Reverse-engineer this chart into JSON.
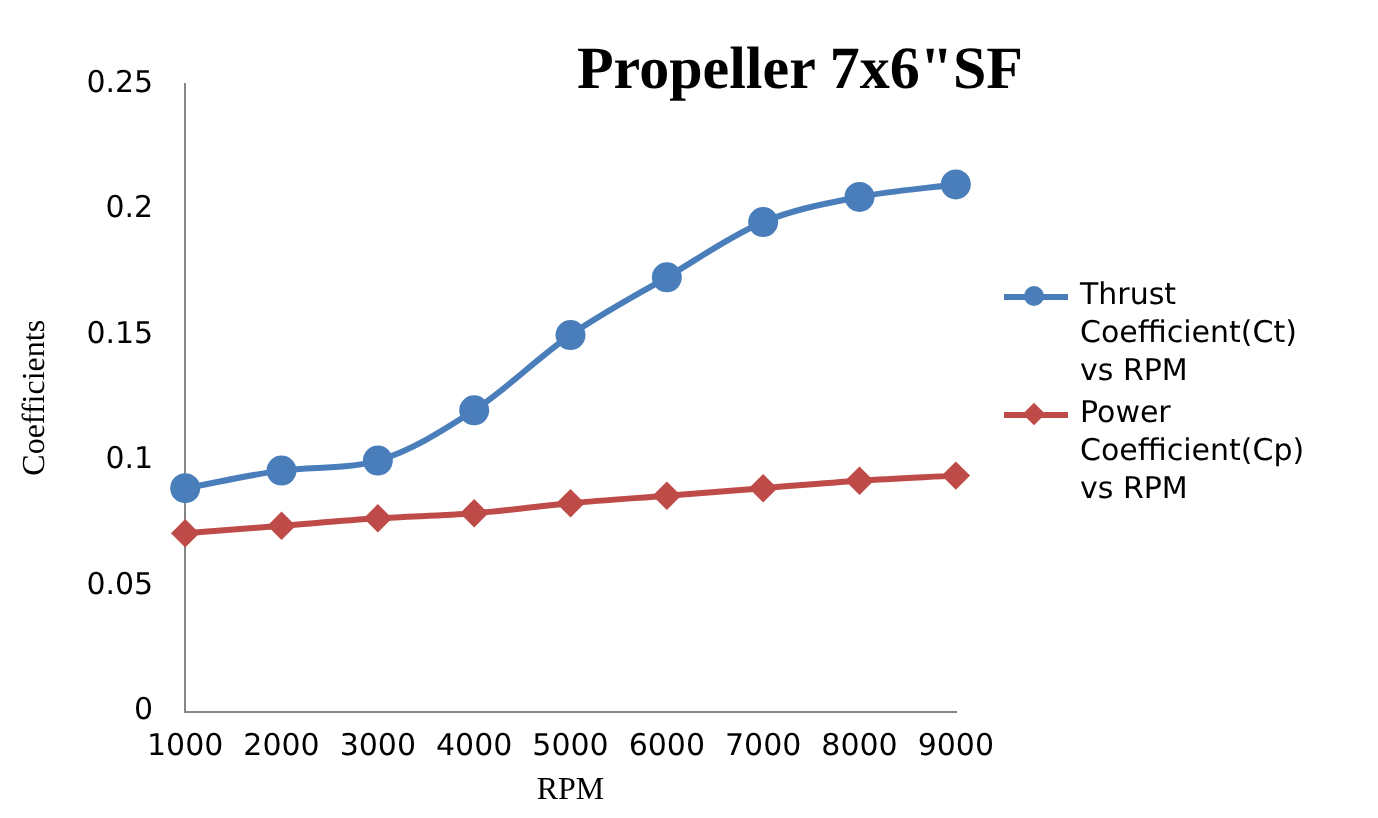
{
  "chart_data": {
    "type": "line",
    "title": "Propeller 7x6\"SF",
    "xlabel": "RPM",
    "ylabel": "Coefficients",
    "categories": [
      "1000",
      "2000",
      "3000",
      "4000",
      "5000",
      "6000",
      "7000",
      "8000",
      "9000"
    ],
    "series": [
      {
        "name": "Thrust Coefficient(Ct) vs RPM",
        "color": "#4a7ebb",
        "marker": "circle",
        "values": [
          0.089,
          0.096,
          0.1,
          0.12,
          0.15,
          0.173,
          0.195,
          0.205,
          0.21
        ]
      },
      {
        "name": "Power Coefficient(Cp) vs RPM",
        "color": "#be4b48",
        "marker": "diamond",
        "values": [
          0.071,
          0.074,
          0.077,
          0.079,
          0.083,
          0.086,
          0.089,
          0.092,
          0.094
        ]
      }
    ],
    "ylim": [
      0,
      0.25
    ],
    "yticks": [
      0,
      0.05,
      0.1,
      0.15,
      0.2,
      0.25
    ],
    "grid": false,
    "legend": "right",
    "line_style": "solid"
  }
}
